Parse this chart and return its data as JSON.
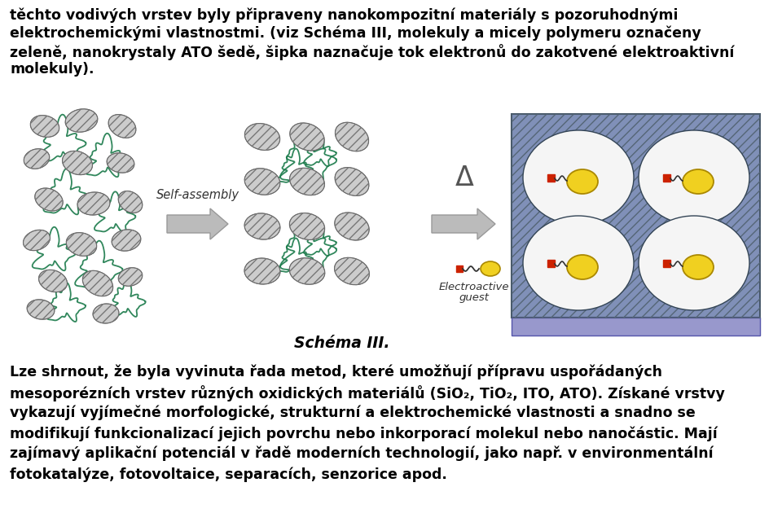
{
  "background_color": "#ffffff",
  "text_color": "#000000",
  "font_size": 12.5,
  "top_lines": [
    "těchto vodivých vrstev byly připraveny nanokompozitní materiály s pozoruhodnými",
    "elektrochemickými vlastnostmi. (viz Schéma III, molekuly a micely polymeru označeny",
    "zeleně, nanokrystaly ATO šedě, šipka naznačuje tok elektronů do zakotvené elektroaktivní",
    "molekuly)."
  ],
  "schema_label": "Schéma III.",
  "self_assembly_label": "Self-assembly",
  "electroactive_line1": "Electroactive",
  "electroactive_line2": "guest",
  "delta_symbol": "Δ",
  "bottom_lines": [
    "Lze shrnout, že byla vyvinuta řada metod, které umožňují přípravu uspořádaných",
    "mesoporézních vrstev různých oxidických materiálů (SiO₂, TiO₂, ITO, ATO). Získané vrstvy",
    "vykazují vyjímečné morfologické, strukturní a elektrochemické vlastnosti a snadno se",
    "modifikují funkcionalizací jejich povrchu nebo inkorporací molekul nebo nanočástic. Mají",
    "zajímavý aplikační potenciál v řadě moderních technologií, jako např. v environmentální",
    "fotokatalýze, fotovoltaice, separacích, senzorice apod."
  ],
  "polymer_color": "#1a7a4a",
  "ato_face_color": "#cccccc",
  "ato_edge_color": "#555555",
  "arrow_color": "#bbbbbb",
  "arrow_edge_color": "#999999",
  "panel3_wall_color": "#8090b8",
  "panel3_base_color": "#9898cc",
  "molecule_color": "#f0d020",
  "molecule_edge_color": "#aa8800",
  "anchor_color": "#cc2200",
  "delta_color": "#555555",
  "label_color": "#333333"
}
